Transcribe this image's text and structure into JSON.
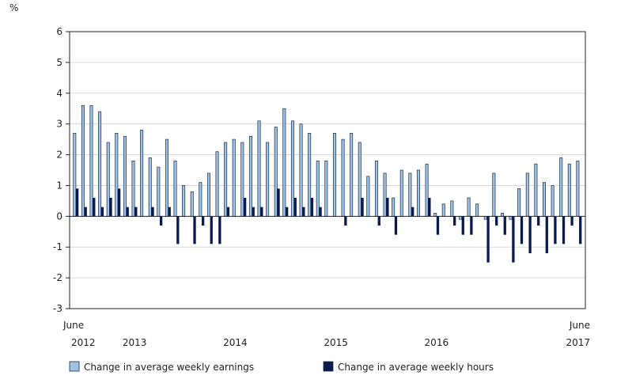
{
  "chart_data": {
    "type": "bar",
    "ylabel": "%",
    "ylim": [
      -3,
      6
    ],
    "yticks": [
      6,
      5,
      4,
      3,
      2,
      1,
      0,
      -1,
      -2,
      -3
    ],
    "categories": [
      "2012-06",
      "2012-07",
      "2012-08",
      "2012-09",
      "2012-10",
      "2012-11",
      "2012-12",
      "2013-01",
      "2013-02",
      "2013-03",
      "2013-04",
      "2013-05",
      "2013-06",
      "2013-07",
      "2013-08",
      "2013-09",
      "2013-10",
      "2013-11",
      "2013-12",
      "2014-01",
      "2014-02",
      "2014-03",
      "2014-04",
      "2014-05",
      "2014-06",
      "2014-07",
      "2014-08",
      "2014-09",
      "2014-10",
      "2014-11",
      "2014-12",
      "2015-01",
      "2015-02",
      "2015-03",
      "2015-04",
      "2015-05",
      "2015-06",
      "2015-07",
      "2015-08",
      "2015-09",
      "2015-10",
      "2015-11",
      "2015-12",
      "2016-01",
      "2016-02",
      "2016-03",
      "2016-04",
      "2016-05",
      "2016-06",
      "2016-07",
      "2016-08",
      "2016-09",
      "2016-10",
      "2016-11",
      "2016-12",
      "2017-01",
      "2017-02",
      "2017-03",
      "2017-04",
      "2017-05",
      "2017-06"
    ],
    "series": [
      {
        "name": "Change in average weekly earnings",
        "color": "#9dc3e6",
        "values": [
          2.7,
          3.6,
          3.6,
          3.4,
          2.4,
          2.7,
          2.6,
          1.8,
          2.8,
          1.9,
          1.6,
          2.5,
          1.8,
          1.0,
          0.8,
          1.1,
          1.4,
          2.1,
          2.4,
          2.5,
          2.4,
          2.6,
          3.1,
          2.4,
          2.9,
          3.5,
          3.1,
          3.0,
          2.7,
          1.8,
          1.8,
          2.7,
          2.5,
          2.7,
          2.4,
          1.3,
          1.8,
          1.4,
          0.6,
          1.5,
          1.4,
          1.5,
          1.7,
          0.1,
          0.4,
          0.5,
          -0.1,
          0.6,
          0.4,
          -0.1,
          1.4,
          0.1,
          -0.1,
          0.9,
          1.4,
          1.7,
          1.1,
          1.0,
          1.9,
          1.7,
          1.8
        ]
      },
      {
        "name": "Change in average weekly hours",
        "color": "#0b1a4d",
        "values": [
          0.9,
          0.3,
          0.6,
          0.3,
          0.6,
          0.9,
          0.3,
          0.3,
          0.0,
          0.3,
          -0.3,
          0.3,
          -0.9,
          0.0,
          -0.9,
          -0.3,
          -0.9,
          -0.9,
          0.3,
          0.0,
          0.6,
          0.3,
          0.3,
          0.0,
          0.9,
          0.3,
          0.6,
          0.3,
          0.6,
          0.3,
          0.0,
          0.0,
          -0.3,
          0.0,
          0.6,
          0.0,
          -0.3,
          0.6,
          -0.6,
          0.0,
          0.3,
          0.0,
          0.6,
          -0.6,
          0.0,
          -0.3,
          -0.6,
          -0.6,
          0.0,
          -1.5,
          -0.3,
          -0.6,
          -1.5,
          -0.9,
          -1.2,
          -0.3,
          -1.2,
          -0.9,
          -0.9,
          -0.3,
          -0.9
        ]
      }
    ],
    "xaxis_labels": [
      {
        "index": 0,
        "top": "June",
        "bottom": "2012"
      },
      {
        "index": 7,
        "top": "",
        "bottom": "2013"
      },
      {
        "index": 19,
        "top": "",
        "bottom": "2014"
      },
      {
        "index": 31,
        "top": "",
        "bottom": "2015"
      },
      {
        "index": 43,
        "top": "",
        "bottom": "2016"
      },
      {
        "index": 60,
        "top": "June",
        "bottom": "2017"
      }
    ],
    "legend_position": "bottom"
  }
}
